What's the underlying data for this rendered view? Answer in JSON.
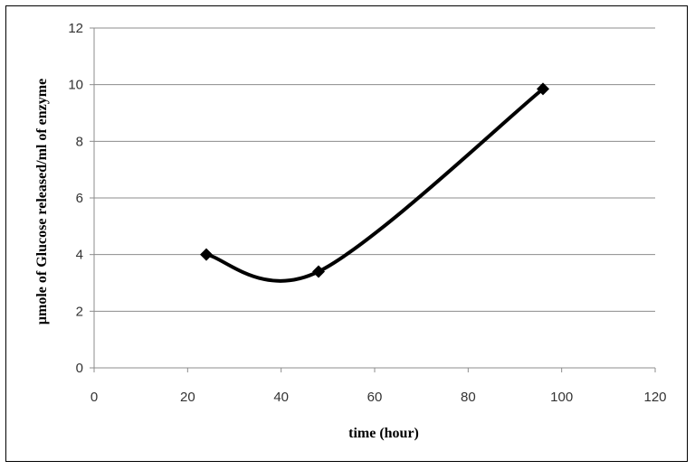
{
  "chart_data": {
    "type": "line",
    "title": "",
    "xlabel": "time (hour)",
    "ylabel": "µmole of Glucose released/ml of enzyme",
    "xlim": [
      0,
      120
    ],
    "ylim": [
      0,
      12
    ],
    "xticks": [
      0,
      20,
      40,
      60,
      80,
      100,
      120
    ],
    "yticks": [
      0,
      2,
      4,
      6,
      8,
      10,
      12
    ],
    "grid": "horizontal",
    "legend": "none",
    "series": [
      {
        "x": [
          24,
          48,
          96
        ],
        "y": [
          4.0,
          3.4,
          9.85
        ],
        "color": "#000000",
        "marker": "diamond",
        "smooth": true
      }
    ]
  }
}
